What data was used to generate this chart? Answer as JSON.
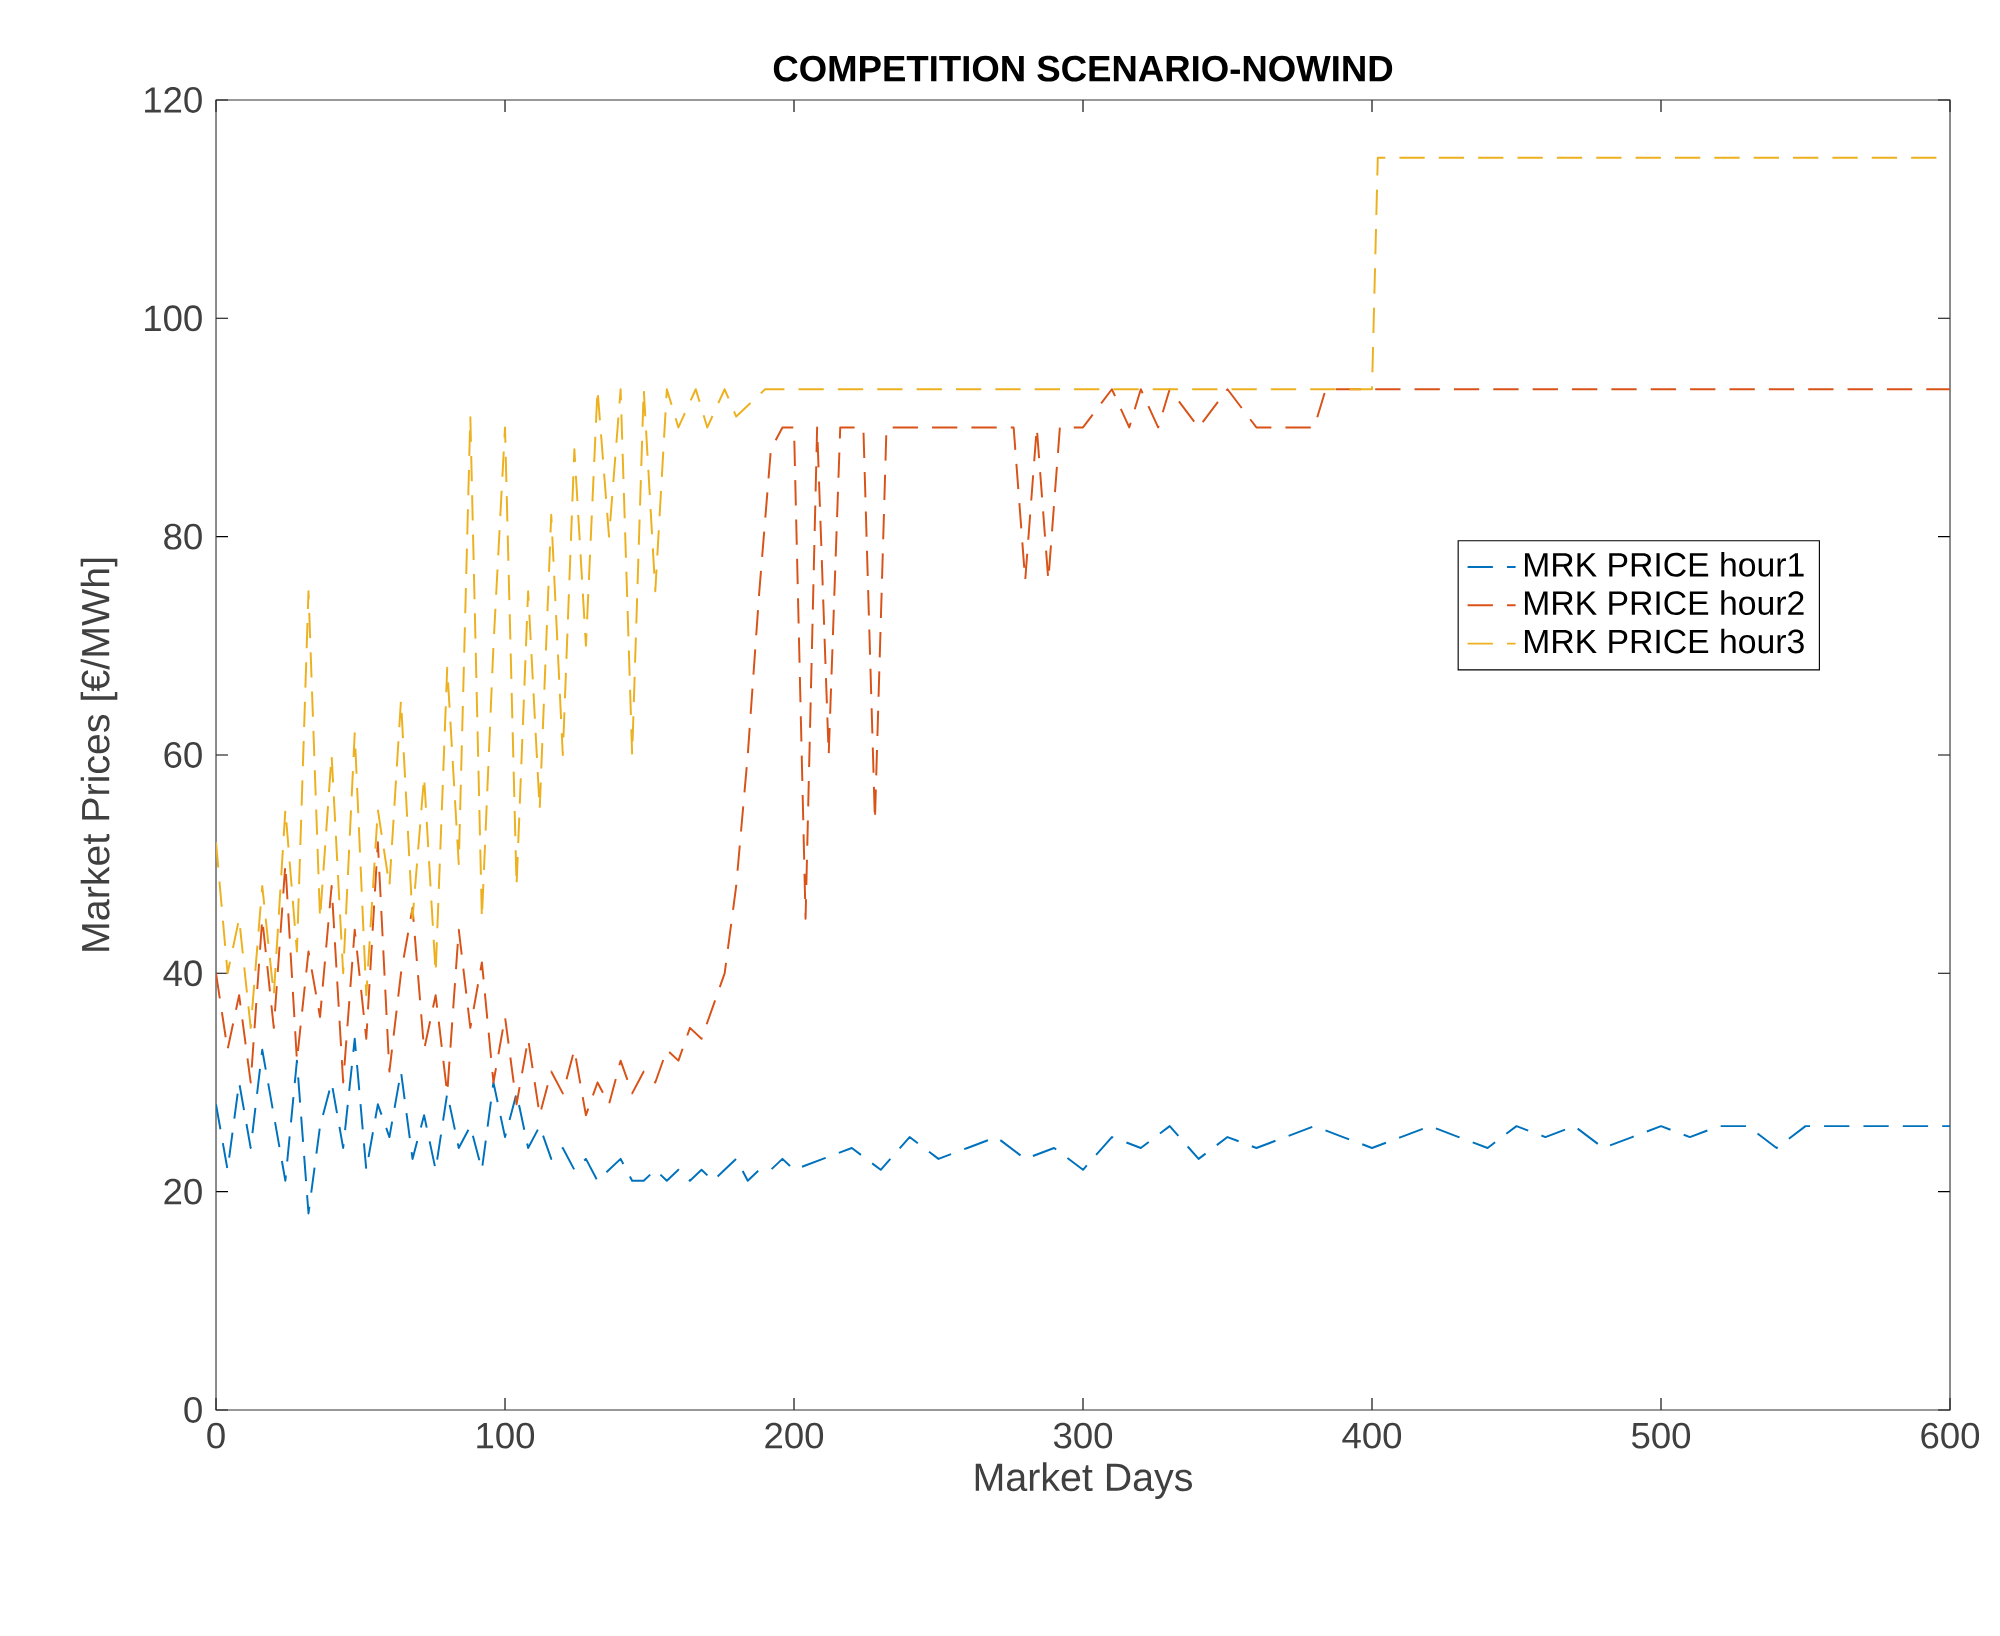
{
  "chart_data": {
    "type": "line",
    "title": "COMPETITION SCENARIO-NOWIND",
    "xlabel": "Market Days",
    "ylabel": "Market Prices [€/MWh]",
    "xlim": [
      0,
      600
    ],
    "xticks": [
      0,
      100,
      200,
      300,
      400,
      500,
      600
    ],
    "ylim": [
      0,
      120
    ],
    "yticks": [
      0,
      20,
      40,
      60,
      80,
      100,
      120
    ],
    "legend": "right",
    "line_style": "dashed",
    "marker": "none",
    "grid": false,
    "series": [
      {
        "name": "MRK PRICE hour1",
        "color": "#0072bd",
        "x": [
          0,
          4,
          8,
          12,
          16,
          20,
          24,
          28,
          32,
          36,
          40,
          44,
          48,
          52,
          56,
          60,
          64,
          68,
          72,
          76,
          80,
          84,
          88,
          92,
          96,
          100,
          104,
          108,
          112,
          116,
          120,
          124,
          128,
          132,
          136,
          140,
          144,
          148,
          152,
          156,
          160,
          164,
          168,
          172,
          176,
          180,
          184,
          188,
          192,
          196,
          200,
          210,
          220,
          230,
          240,
          250,
          260,
          270,
          280,
          290,
          300,
          310,
          320,
          330,
          340,
          350,
          360,
          370,
          380,
          390,
          400,
          410,
          420,
          430,
          440,
          450,
          460,
          470,
          480,
          490,
          500,
          510,
          520,
          530,
          540,
          550,
          560,
          570,
          580,
          590,
          600
        ],
        "values": [
          28,
          22,
          30,
          24,
          33,
          27,
          21,
          32,
          18,
          26,
          30,
          24,
          34,
          22,
          28,
          25,
          31,
          23,
          27,
          22,
          29,
          24,
          26,
          22,
          30,
          25,
          29,
          24,
          26,
          23,
          24,
          22,
          23,
          21,
          22,
          23,
          21,
          21,
          22,
          21,
          22,
          21,
          22,
          21,
          22,
          23,
          21,
          22,
          22,
          23,
          22,
          23,
          24,
          22,
          25,
          23,
          24,
          25,
          23,
          24,
          22,
          25,
          24,
          26,
          23,
          25,
          24,
          25,
          26,
          25,
          24,
          25,
          26,
          25,
          24,
          26,
          25,
          26,
          24,
          25,
          26,
          25,
          26,
          26,
          24,
          26,
          26,
          26,
          26,
          26,
          26
        ]
      },
      {
        "name": "MRK PRICE hour2",
        "color": "#d95319",
        "x": [
          0,
          4,
          8,
          12,
          16,
          20,
          24,
          28,
          32,
          36,
          40,
          44,
          48,
          52,
          56,
          60,
          64,
          68,
          72,
          76,
          80,
          84,
          88,
          92,
          96,
          100,
          104,
          108,
          112,
          116,
          120,
          124,
          128,
          132,
          136,
          140,
          144,
          148,
          152,
          156,
          160,
          164,
          168,
          172,
          176,
          180,
          184,
          188,
          192,
          196,
          200,
          204,
          208,
          212,
          216,
          220,
          224,
          228,
          232,
          240,
          250,
          260,
          270,
          276,
          280,
          284,
          288,
          292,
          300,
          310,
          316,
          320,
          326,
          330,
          340,
          350,
          360,
          370,
          380,
          384,
          400,
          500,
          600
        ],
        "values": [
          40,
          33,
          38,
          30,
          45,
          35,
          50,
          32,
          42,
          36,
          48,
          30,
          44,
          34,
          52,
          31,
          40,
          46,
          33,
          38,
          29,
          44,
          35,
          41,
          30,
          36,
          28,
          34,
          27,
          31,
          29,
          33,
          27,
          30,
          28,
          32,
          29,
          31,
          30,
          33,
          32,
          35,
          34,
          37,
          40,
          48,
          60,
          75,
          88,
          90,
          90,
          45,
          90,
          60,
          90,
          90,
          90,
          54,
          90,
          90,
          90,
          90,
          90,
          90,
          76,
          90,
          76,
          90,
          90,
          93.5,
          90,
          93.5,
          90,
          93.5,
          90,
          93.5,
          90,
          90,
          90,
          93.5,
          93.5,
          93.5,
          93.5
        ]
      },
      {
        "name": "MRK PRICE hour3",
        "color": "#edb120",
        "x": [
          0,
          4,
          8,
          12,
          16,
          20,
          24,
          28,
          32,
          36,
          40,
          44,
          48,
          52,
          56,
          60,
          64,
          68,
          72,
          76,
          80,
          84,
          88,
          92,
          96,
          100,
          104,
          108,
          112,
          116,
          120,
          124,
          128,
          132,
          136,
          140,
          144,
          148,
          152,
          156,
          160,
          166,
          170,
          176,
          180,
          190,
          400,
          402,
          600
        ],
        "values": [
          52,
          40,
          45,
          35,
          48,
          38,
          55,
          42,
          75,
          45,
          60,
          40,
          62,
          38,
          55,
          48,
          65,
          45,
          58,
          40,
          68,
          50,
          91,
          45,
          70,
          90,
          48,
          75,
          55,
          82,
          60,
          88,
          70,
          93.5,
          80,
          93.5,
          60,
          93.5,
          75,
          93.5,
          90,
          93.5,
          90,
          93.5,
          91,
          93.5,
          93.5,
          114.7,
          114.7
        ]
      }
    ]
  }
}
